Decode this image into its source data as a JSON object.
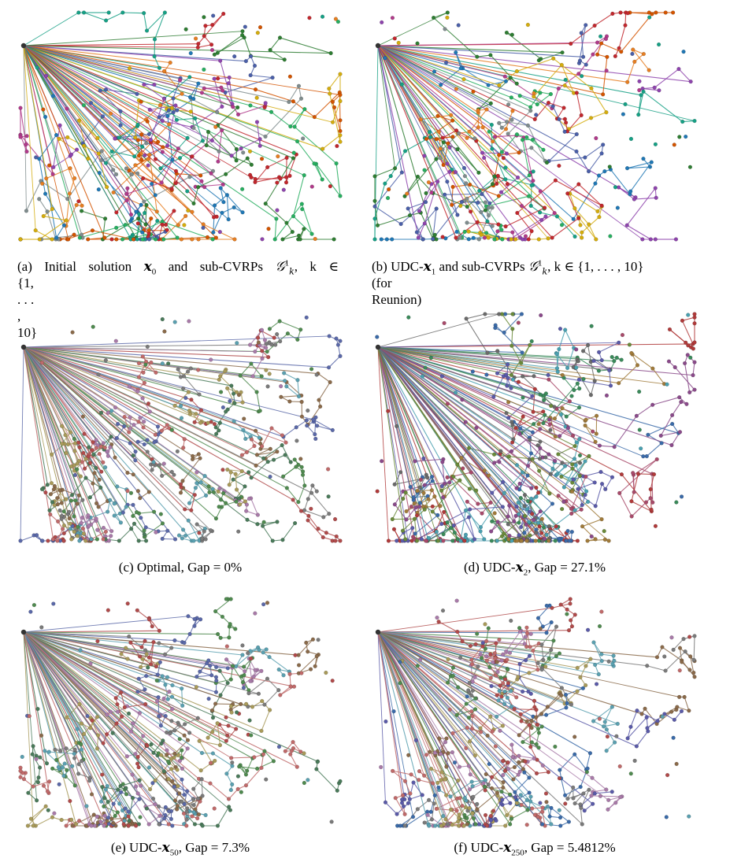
{
  "figure": {
    "panels": [
      {
        "id": "a",
        "caption_prefix": "(a) Initial solution ",
        "caption_var": "x",
        "caption_sub": "0",
        "caption_mid": " and sub-CVRPs ",
        "caption_set": "𝒢",
        "caption_set_sup": "1",
        "caption_set_sub": "k",
        "caption_rest": ", k ∈",
        "caption_line2": "{1, . . . , 10}",
        "palette": [
          "#c1272d",
          "#2e7d32",
          "#4a5fa8",
          "#8e44ad",
          "#e67e22",
          "#16a085",
          "#d35400",
          "#7f8c8d",
          "#27ae60",
          "#b03a8a",
          "#1f77b4",
          "#d4ac0d"
        ]
      },
      {
        "id": "b",
        "caption_prefix": "(b) UDC-",
        "caption_var": "x",
        "caption_sub": "1",
        "caption_mid": " and sub-CVRPs ",
        "caption_set": "𝒢",
        "caption_set_sup": "1",
        "caption_set_sub": "k",
        "caption_rest": ", k ∈ {1, . . . , 10}",
        "caption_line2": "(for Reunion)",
        "palette": [
          "#c1272d",
          "#2e7d32",
          "#4a5fa8",
          "#8e44ad",
          "#e67e22",
          "#16a085",
          "#d35400",
          "#b03a8a",
          "#1f77b4",
          "#d4ac0d",
          "#27ae60",
          "#7f8c8d"
        ]
      },
      {
        "id": "c",
        "caption_prefix": "(c) Optimal, Gap = 0%",
        "palette": [
          "#7a7a7a",
          "#4f8a4f",
          "#b04a4a",
          "#5a68a8",
          "#8a6a4a",
          "#5aa0b0",
          "#a87aa8",
          "#a89a5a",
          "#4a7a5a",
          "#c06a6a"
        ]
      },
      {
        "id": "d",
        "caption_prefix": "(d) UDC-",
        "caption_var": "x",
        "caption_sub": "2",
        "caption_rest": ", Gap = 27.1%",
        "palette": [
          "#b03a3a",
          "#3a6aa8",
          "#3a8a5a",
          "#8a4a8a",
          "#6a6a6a",
          "#4aa0b0",
          "#a07a3a",
          "#5a5aa8",
          "#a84a6a",
          "#6a8a3a"
        ]
      },
      {
        "id": "e",
        "caption_prefix": "(e) UDC-",
        "caption_var": "x",
        "caption_sub": "50",
        "caption_rest": ", Gap = 7.3%",
        "palette": [
          "#b04a4a",
          "#4f8a4f",
          "#5a68a8",
          "#7a7a7a",
          "#8a6a4a",
          "#5aa0b0",
          "#a87aa8",
          "#a89a5a",
          "#4a7a5a",
          "#c06a6a"
        ]
      },
      {
        "id": "f",
        "caption_prefix": "(f) UDC-",
        "caption_var": "x",
        "caption_sub": "250",
        "caption_rest": ", Gap = 5.4812%",
        "palette": [
          "#b04a4a",
          "#3a6aa8",
          "#4f8a4f",
          "#8a6a4a",
          "#a87aa8",
          "#7a7a7a",
          "#5aa0b0",
          "#a89a5a",
          "#5a5aa8",
          "#c06a6a"
        ]
      }
    ]
  }
}
